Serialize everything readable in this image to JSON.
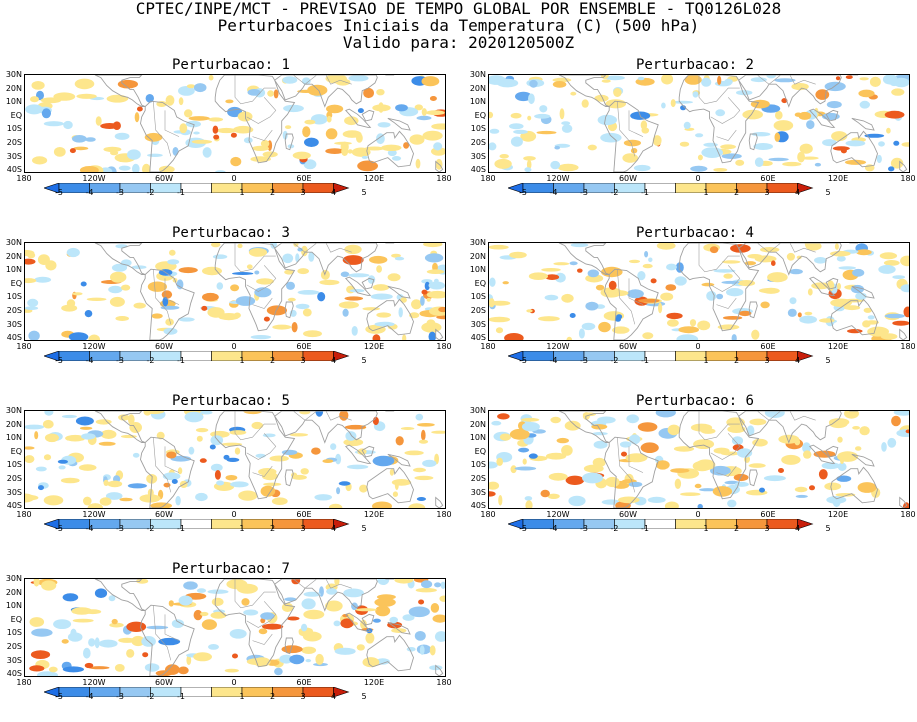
{
  "header": {
    "line1": "CPTEC/INPE/MCT - PREVISAO DE TEMPO GLOBAL POR ENSEMBLE - TQ0126L028",
    "line2": "Perturbacoes Iniciais da Temperatura (C) (500 hPa)",
    "line3": "Valido para: 2020120500Z"
  },
  "lat_labels": [
    "30N",
    "20N",
    "10N",
    "EQ",
    "10S",
    "20S",
    "30S",
    "40S"
  ],
  "lon_labels": [
    "180",
    "120W",
    "60W",
    "0",
    "60E",
    "120E",
    "180"
  ],
  "colorbar": {
    "labels": [
      "-5",
      "-4",
      "-3",
      "-2",
      "-1",
      "1",
      "2",
      "3",
      "4",
      "5"
    ],
    "colors": [
      "#1e6ee6",
      "#3c8ce8",
      "#64a8ee",
      "#96c8f2",
      "#bce6fa",
      "#ffffff",
      "#fde68c",
      "#fbc45a",
      "#f5963c",
      "#ec5a1e",
      "#c81e0a"
    ]
  },
  "map_colors": {
    "land_outline": "#a0a0a0",
    "frame": "#000000"
  },
  "panels": [
    {
      "title": "Perturbacao: 1"
    },
    {
      "title": "Perturbacao: 2"
    },
    {
      "title": "Perturbacao: 3"
    },
    {
      "title": "Perturbacao: 4"
    },
    {
      "title": "Perturbacao: 5"
    },
    {
      "title": "Perturbacao: 6"
    },
    {
      "title": "Perturbacao: 7"
    }
  ]
}
